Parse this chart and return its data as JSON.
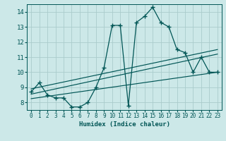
{
  "title": "",
  "xlabel": "Humidex (Indice chaleur)",
  "bg_color": "#cce8e8",
  "grid_color": "#aacccc",
  "line_color": "#005555",
  "xlim": [
    -0.5,
    23.5
  ],
  "ylim": [
    7.5,
    14.5
  ],
  "yticks": [
    8,
    9,
    10,
    11,
    12,
    13,
    14
  ],
  "xticks": [
    0,
    1,
    2,
    3,
    4,
    5,
    6,
    7,
    8,
    9,
    10,
    11,
    12,
    13,
    14,
    15,
    16,
    17,
    18,
    19,
    20,
    21,
    22,
    23
  ],
  "curve_x": [
    0,
    1,
    2,
    3,
    4,
    5,
    6,
    7,
    8,
    9,
    10,
    11,
    12,
    13,
    14,
    15,
    16,
    17,
    18,
    19,
    20,
    21,
    22,
    23
  ],
  "curve_y": [
    8.7,
    9.3,
    8.5,
    8.3,
    8.3,
    7.7,
    7.7,
    8.0,
    9.0,
    10.3,
    13.1,
    13.1,
    7.8,
    13.3,
    13.7,
    14.3,
    13.3,
    13.0,
    11.5,
    11.3,
    10.0,
    11.0,
    10.0,
    10.0
  ],
  "reg_line1": {
    "x": [
      0,
      23
    ],
    "y": [
      8.25,
      10.0
    ]
  },
  "reg_line2": {
    "x": [
      0,
      23
    ],
    "y": [
      8.55,
      11.2
    ]
  },
  "reg_line3": {
    "x": [
      0,
      23
    ],
    "y": [
      8.9,
      11.5
    ]
  }
}
